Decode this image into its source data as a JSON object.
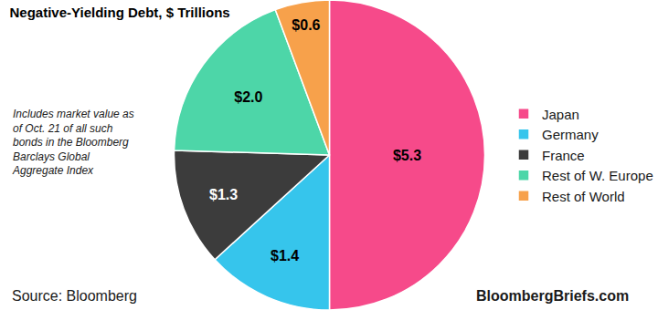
{
  "chart_data": {
    "type": "pie",
    "title": "Negative-Yielding Debt, $ Trillions",
    "categories": [
      "Japan",
      "Germany",
      "France",
      "Rest of W. Europe",
      "Rest of World"
    ],
    "values": [
      5.3,
      1.4,
      1.3,
      2.0,
      0.6
    ],
    "value_labels": [
      "$5.3",
      "$1.4",
      "$1.3",
      "$2.0",
      "$0.6"
    ],
    "colors": [
      "#f64a8a",
      "#36c5ec",
      "#3c3c3c",
      "#4dd6a8",
      "#f7a14b"
    ],
    "data_labels": true,
    "legend": "right",
    "annotations": [
      {
        "text": [
          "Includes market value as",
          "of Oct. 21 of all such",
          "bonds in the Bloomberg",
          "Barclays Global",
          "Aggregate Index"
        ]
      },
      {
        "text": [
          "Source: Bloomberg"
        ]
      },
      {
        "text": [
          "BloombergBriefs.com"
        ]
      }
    ]
  }
}
